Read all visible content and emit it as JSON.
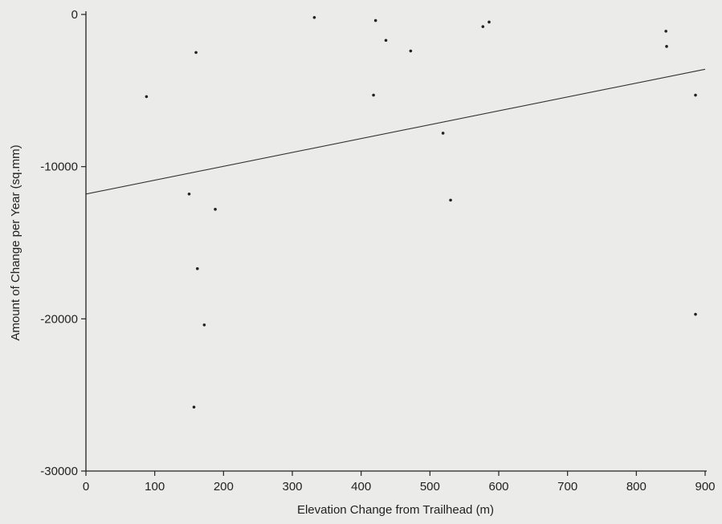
{
  "chart_data": {
    "type": "scatter",
    "title": "",
    "xlabel": "Elevation Change from Trailhead (m)",
    "ylabel": "Amount of Change per Year (sq.mm)",
    "xlim": [
      0,
      900
    ],
    "ylim": [
      -30000,
      0
    ],
    "xticks": [
      0,
      100,
      200,
      300,
      400,
      500,
      600,
      700,
      800,
      900
    ],
    "yticks": [
      0,
      -10000,
      -20000,
      -30000
    ],
    "grid": false,
    "legend": "none",
    "colors": {
      "axis": "#222222",
      "points": "#222222",
      "line": "#333333",
      "background": "#ebebea"
    },
    "series": [
      {
        "values": [
          {
            "x": 88,
            "y": -5400
          },
          {
            "x": 150,
            "y": -11800
          },
          {
            "x": 157,
            "y": -25800
          },
          {
            "x": 160,
            "y": -2500
          },
          {
            "x": 162,
            "y": -16700
          },
          {
            "x": 172,
            "y": -20400
          },
          {
            "x": 188,
            "y": -12800
          },
          {
            "x": 332,
            "y": -200
          },
          {
            "x": 418,
            "y": -5300
          },
          {
            "x": 421,
            "y": -400
          },
          {
            "x": 436,
            "y": -1700
          },
          {
            "x": 472,
            "y": -2400
          },
          {
            "x": 519,
            "y": -7800
          },
          {
            "x": 530,
            "y": -12200
          },
          {
            "x": 577,
            "y": -800
          },
          {
            "x": 586,
            "y": -500
          },
          {
            "x": 843,
            "y": -1100
          },
          {
            "x": 844,
            "y": -2100
          },
          {
            "x": 886,
            "y": -5300
          },
          {
            "x": 886,
            "y": -19700
          }
        ]
      }
    ],
    "trendline": {
      "x": [
        0,
        900
      ],
      "y": [
        -11800,
        -3600
      ]
    }
  }
}
